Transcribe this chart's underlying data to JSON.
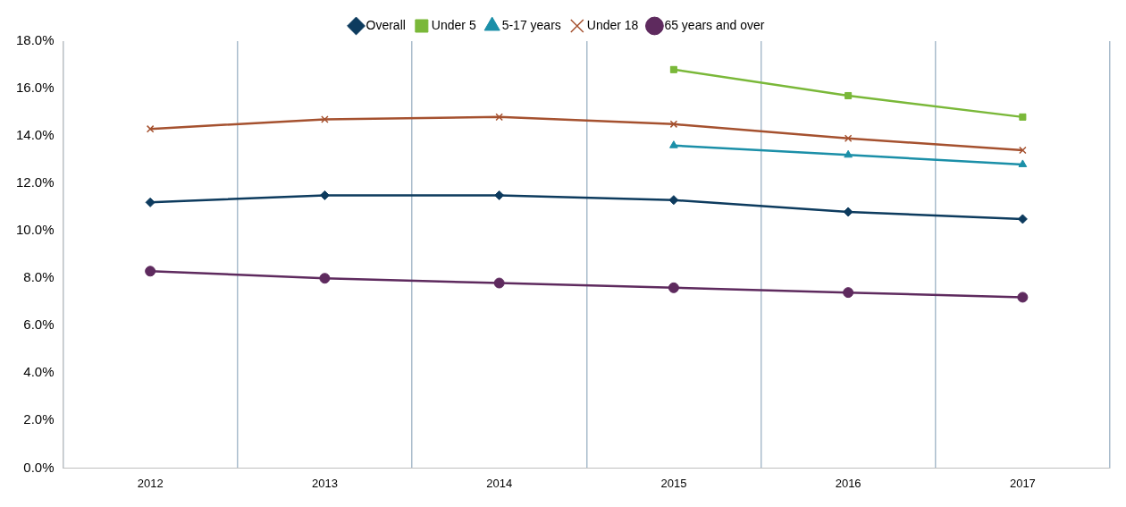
{
  "chart_data": {
    "type": "line",
    "categories": [
      "2012",
      "2013",
      "2014",
      "2015",
      "2016",
      "2017"
    ],
    "series": [
      {
        "name": "Overall",
        "color": "#0d3b5e",
        "marker": "diamond",
        "values": [
          11.2,
          11.5,
          11.5,
          11.3,
          10.8,
          10.5
        ]
      },
      {
        "name": "Under 5",
        "color": "#7ab839",
        "marker": "square",
        "values": [
          null,
          null,
          null,
          16.8,
          15.7,
          14.8
        ]
      },
      {
        "name": "5-17 years",
        "color": "#1b8fa8",
        "marker": "triangle",
        "values": [
          null,
          null,
          null,
          13.6,
          13.2,
          12.8
        ]
      },
      {
        "name": "Under 18",
        "color": "#a5512f",
        "marker": "cross",
        "values": [
          14.3,
          14.7,
          14.8,
          14.5,
          13.9,
          13.4
        ]
      },
      {
        "name": "65 years and over",
        "color": "#5e2a5e",
        "marker": "circle",
        "values": [
          8.3,
          8.0,
          7.8,
          7.6,
          7.4,
          7.2
        ]
      }
    ],
    "ylim": [
      0,
      18
    ],
    "yticks": [
      {
        "value": 0,
        "label": "0.0%"
      },
      {
        "value": 2,
        "label": "2.0%"
      },
      {
        "value": 4,
        "label": "4.0%"
      },
      {
        "value": 6,
        "label": "6.0%"
      },
      {
        "value": 8,
        "label": "8.0%"
      },
      {
        "value": 10,
        "label": "10.0%"
      },
      {
        "value": 12,
        "label": "12.0%"
      },
      {
        "value": 14,
        "label": "14.0%"
      },
      {
        "value": 16,
        "label": "16.0%"
      },
      {
        "value": 18,
        "label": "18.0%"
      }
    ],
    "grid": "x",
    "legend": "top",
    "line_style": "solid"
  }
}
